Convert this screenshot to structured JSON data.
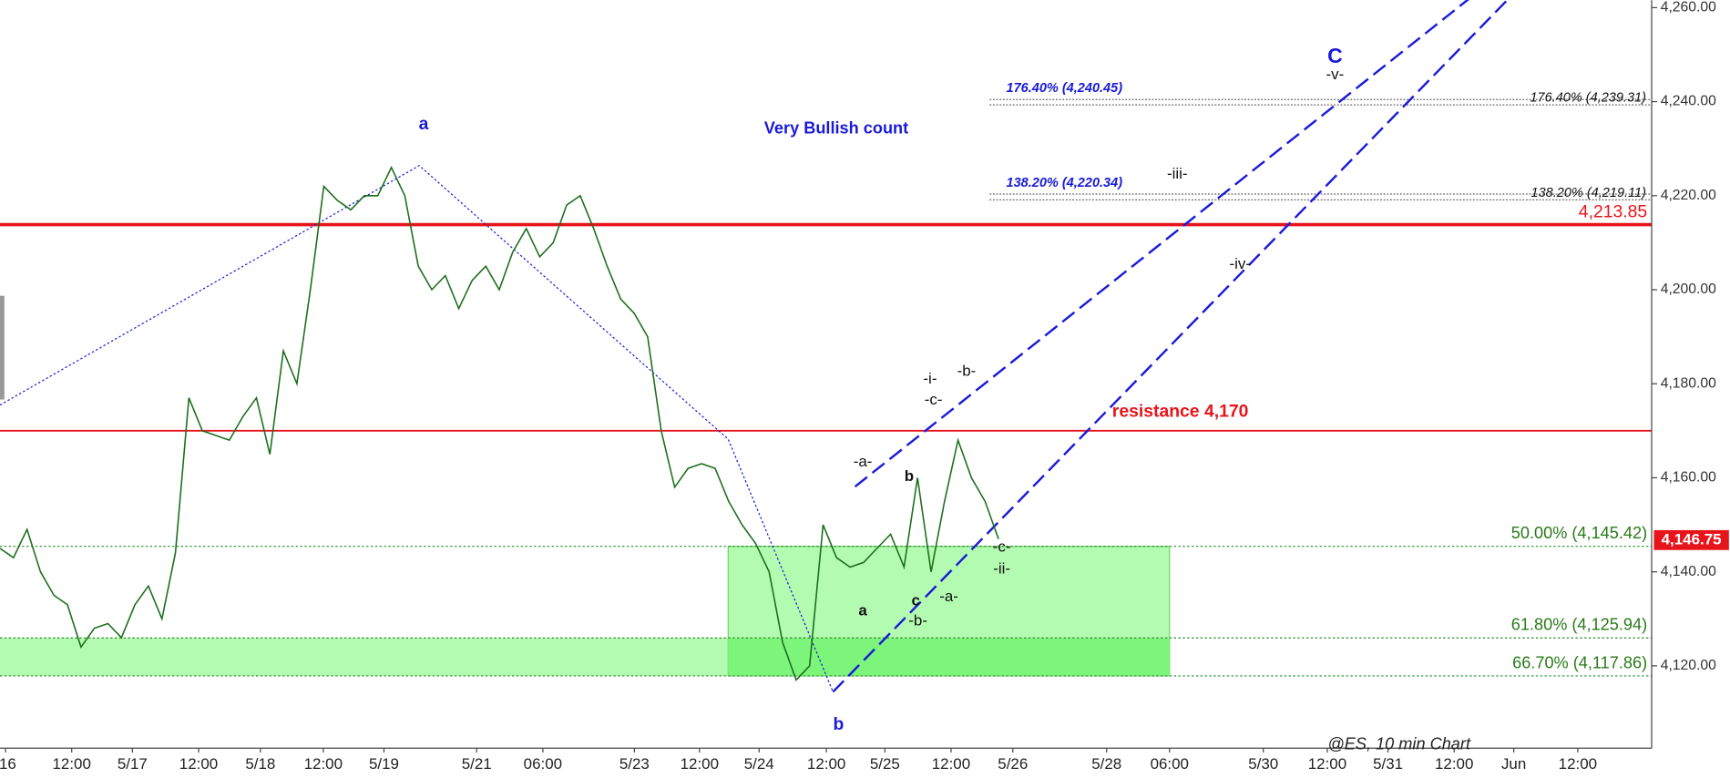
{
  "chart_data": {
    "type": "line",
    "title": "Very Bullish count",
    "caption": "@ES, 10 min Chart",
    "series": [
      {
        "color": "#1b6e1b",
        "values": [
          4145,
          4143,
          4149,
          4140,
          4135,
          4133,
          4124,
          4128,
          4129,
          4126,
          4133,
          4137,
          4130,
          4144,
          4177,
          4170,
          4169,
          4168,
          4173,
          4177,
          4165,
          4187,
          4180,
          4200,
          4222,
          4219,
          4217,
          4220,
          4220,
          4226,
          4220,
          4205,
          4200,
          4203,
          4196,
          4202,
          4205,
          4200,
          4208,
          4213,
          4207,
          4210,
          4218,
          4220,
          4213,
          4205,
          4198,
          4195,
          4190,
          4170,
          4158,
          4162,
          4163,
          4162,
          4155,
          4150,
          4146,
          4140,
          4125,
          4117,
          4120,
          4150,
          4143,
          4141,
          4142,
          4145,
          4148,
          4141,
          4160,
          4140,
          4155,
          4168,
          4160,
          4155,
          4147
        ]
      }
    ],
    "ylim": [
      4102.5,
      4261.6
    ],
    "yticks": [
      {
        "value": 4120,
        "label": "4,120.00"
      },
      {
        "value": 4140,
        "label": "4,140.00"
      },
      {
        "value": 4160,
        "label": "4,160.00"
      },
      {
        "value": 4180,
        "label": "4,180.00"
      },
      {
        "value": 4200,
        "label": "4,200.00"
      },
      {
        "value": 4220,
        "label": "4,220.00"
      },
      {
        "value": 4240,
        "label": "4,240.00"
      },
      {
        "value": 4260,
        "label": "4,260.00"
      }
    ],
    "xtick_labels": [
      "/16",
      "12:00",
      "5/17",
      "12:00",
      "5/18",
      "12:00",
      "5/19",
      "5/21",
      "06:00",
      "5/23",
      "12:00",
      "5/24",
      "12:00",
      "5/25",
      "12:00",
      "5/26",
      "5/28",
      "06:00",
      "5/30",
      "12:00",
      "5/31",
      "12:00",
      "Jun",
      "12:00"
    ],
    "support_line": {
      "value": 4213.85,
      "label": "4,213.85",
      "color": "#e8141b"
    },
    "resistance": {
      "value": 4170,
      "label": "resistance 4,170",
      "color": "#e8141b"
    },
    "last_price": {
      "value": 4146.75,
      "label": "4,146.75",
      "color": "#e8141b"
    },
    "extensions": [
      {
        "value": 4240.45,
        "label": "176.40% (4,240.45)",
        "color": "#1a1ad8"
      },
      {
        "value": 4239.31,
        "label": "176.40% (4,239.31)",
        "color": "#111"
      },
      {
        "value": 4220.34,
        "label": "138.20% (4,220.34)",
        "color": "#1a1ad8"
      },
      {
        "value": 4219.11,
        "label": "138.20% (4,219.11)",
        "color": "#111"
      }
    ],
    "retracements": [
      {
        "value": 4145.42,
        "label": "50.00% (4,145.42)"
      },
      {
        "value": 4125.94,
        "label": "61.80% (4,125.94)"
      },
      {
        "value": 4117.86,
        "label": "66.70% (4,117.86)"
      }
    ],
    "wave_labels": [
      "a",
      "b",
      "C",
      "-v-",
      "-iii-",
      "-iv-",
      "-i-",
      "-c-",
      "-b-",
      "-a-",
      "b",
      "a",
      "c",
      "-b-",
      "-a-",
      "-c-",
      "-ii-"
    ]
  }
}
